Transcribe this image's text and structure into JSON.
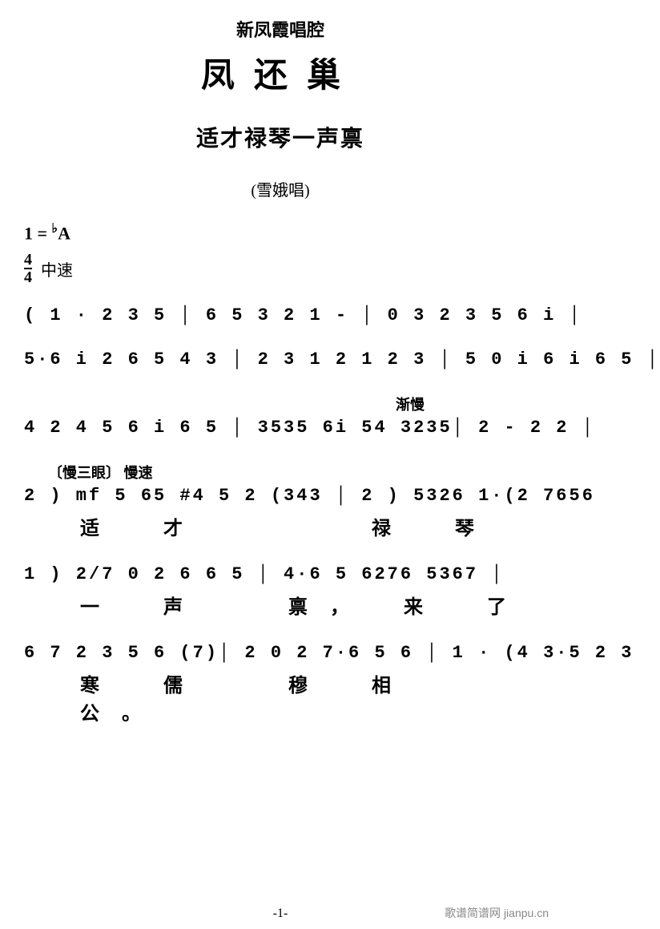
{
  "header_sub": "新凤霞唱腔",
  "title_main": "凤还巢",
  "subtitle": "适才禄琴一声禀",
  "singer": "(雪娥唱)",
  "key": "1 = ",
  "key_acc": "♭",
  "key_note": "A",
  "time_num": "4",
  "time_den": "4",
  "tempo_label": "中速",
  "intro_lines": [
    "( 1  ·  2  3  5 │ 6 5 3 2 1  -  │ 0  3 2 3 5 6 i │",
    "5·6 i 2 6 5 4 3 │ 2 3 1  2 1 2 3 │ 5   0 i 6 i 6 5 │",
    "4 2 4 5 6 i 6 5 │ 3535 6i 54 3235│ 2  -  2   2  │"
  ],
  "annot_jianman": "渐慢",
  "annot_mansanyan": "〔慢三眼〕 慢速",
  "phrases": [
    {
      "music": "2 ) mf 5 65  #4 5 2 (343 │ 2 )  5326  1·(2 7656",
      "lyric": "适　才　　　　禄　琴"
    },
    {
      "music": "1 ) 2/7  0 2  6 6 5 │ 4·6  5   6276  5367 │",
      "lyric": "一　声　　禀，　来　了"
    },
    {
      "music": "6  7 2 3 5 6 (7)│ 2  0 2  7·6 5 6 │ 1 · (4 3·5 2 3",
      "lyric": "寒　儒　　穆　相　公。"
    }
  ],
  "page_num": "-1-",
  "watermark": "歌谱简谱网 jianpu.cn"
}
